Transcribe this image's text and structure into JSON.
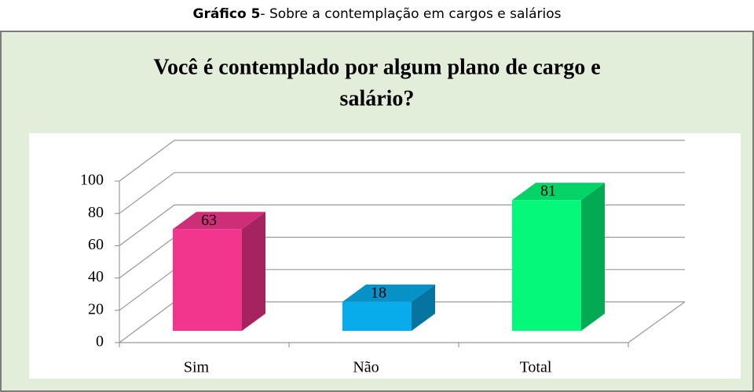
{
  "chart_data": {
    "type": "bar3d",
    "caption_label": "Gráfico 5",
    "caption": "- Sobre a contemplação em cargos e salários",
    "title": [
      "Você é contemplado por algum plano de cargo e",
      "salário?"
    ],
    "categories": [
      "Sim",
      "Não",
      "Total"
    ],
    "values": [
      63,
      18,
      81
    ],
    "colors": [
      "#f2358d",
      "#08acea",
      "#05f87a"
    ],
    "ylim": [
      0,
      100
    ],
    "yticks": [
      0,
      20,
      40,
      60,
      80,
      100
    ],
    "grid": true
  }
}
